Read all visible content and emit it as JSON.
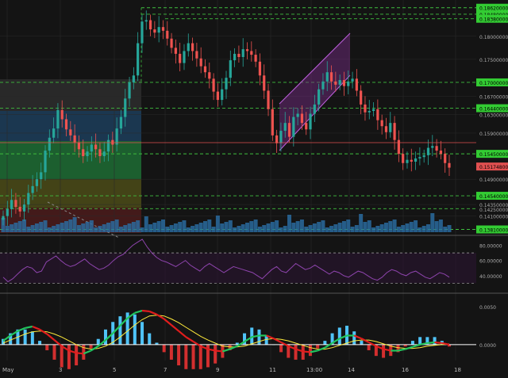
{
  "colors": {
    "background": "#141414",
    "grid": "#2a2a2a",
    "candle_up": "#26a69a",
    "candle_down": "#ef5350",
    "level_line": "#3fbf3f",
    "price_box": "#33cc33",
    "current_price_box": "#e05050",
    "channel": "#b04cc8",
    "rsi": "#8e44ad",
    "macd_zero": "#ffffff",
    "volume": "#2b6fa6"
  },
  "chart_data": [
    {
      "type": "candlestick",
      "name": "price",
      "x_ticks": [
        "May",
        "3",
        "5",
        "7",
        "9",
        "11",
        "13:00",
        "14",
        "16",
        "18"
      ],
      "ylim": [
        0.1375,
        0.1865
      ],
      "price_levels": [
        0.1862,
        0.1848,
        0.1838,
        0.17,
        0.1644,
        0.1545,
        0.1454,
        0.1426,
        0.1381
      ],
      "price_axis_labels": [
        0.18,
        0.175,
        0.167,
        0.163,
        0.159,
        0.149,
        0.1435,
        0.141
      ],
      "current_price": 0.151748,
      "price_labels": [
        "0.18620000",
        "0.18480000",
        "0.18380000",
        "0.18000000",
        "0.17500000",
        "0.17000000",
        "0.16700000",
        "0.16440000",
        "0.16300000",
        "0.15900000",
        "0.15450000",
        "0.15174800",
        "0.14900000",
        "0.14540000",
        "0.14350000",
        "0.14250000",
        "0.14100000",
        "0.13810000"
      ],
      "close_path": [
        0.141,
        0.1425,
        0.1445,
        0.143,
        0.142,
        0.1435,
        0.146,
        0.1475,
        0.149,
        0.1505,
        0.1552,
        0.158,
        0.16,
        0.164,
        0.162,
        0.1598,
        0.1585,
        0.157,
        0.1555,
        0.154,
        0.155,
        0.1565,
        0.1555,
        0.154,
        0.155,
        0.1575,
        0.1565,
        0.16,
        0.1625,
        0.1665,
        0.17,
        0.1715,
        0.1785,
        0.1832,
        0.1835,
        0.1815,
        0.1808,
        0.182,
        0.1812,
        0.1795,
        0.1775,
        0.1762,
        0.1742,
        0.1768,
        0.1785,
        0.1768,
        0.1752,
        0.1735,
        0.1722,
        0.1708,
        0.168,
        0.1662,
        0.1685,
        0.171,
        0.1748,
        0.1762,
        0.1755,
        0.1772,
        0.1768,
        0.176,
        0.1745,
        0.1715,
        0.1682,
        0.1642,
        0.1585,
        0.1568,
        0.1595,
        0.1612,
        0.1582,
        0.1625,
        0.1632,
        0.1612,
        0.1598,
        0.1632,
        0.1652,
        0.1685,
        0.1702,
        0.1722,
        0.1702,
        0.1695,
        0.1705,
        0.1692,
        0.1702,
        0.1708,
        0.1682,
        0.1652,
        0.1635,
        0.1638,
        0.1642,
        0.1618,
        0.1605,
        0.1592,
        0.1612,
        0.1575,
        0.1545,
        0.1525,
        0.1532,
        0.1528,
        0.1535,
        0.1538,
        0.1542,
        0.1558,
        0.1562,
        0.1552,
        0.1545,
        0.1525,
        0.1515
      ]
    },
    {
      "type": "line",
      "name": "rsi",
      "ylim": [
        20,
        90
      ],
      "y_ticks": [
        80,
        60,
        40
      ],
      "levels": [
        70,
        30
      ],
      "values": [
        38,
        32,
        36,
        42,
        48,
        52,
        50,
        44,
        46,
        58,
        62,
        66,
        60,
        55,
        52,
        54,
        58,
        62,
        56,
        52,
        48,
        50,
        54,
        60,
        65,
        68,
        74,
        80,
        84,
        88,
        78,
        70,
        64,
        60,
        58,
        55,
        52,
        56,
        60,
        54,
        50,
        46,
        52,
        56,
        52,
        48,
        44,
        48,
        52,
        50,
        48,
        46,
        44,
        40,
        36,
        42,
        48,
        52,
        46,
        44,
        50,
        56,
        52,
        48,
        50,
        54,
        50,
        46,
        42,
        46,
        44,
        40,
        38,
        42,
        46,
        44,
        40,
        36,
        34,
        38,
        44,
        48,
        46,
        42,
        40,
        44,
        46,
        42,
        38,
        36,
        40,
        44,
        42,
        38
      ]
    },
    {
      "type": "line",
      "name": "macd",
      "ylim": [
        -0.0018,
        0.0066
      ],
      "y_ticks": [
        0.005,
        0
      ],
      "macd": [
        0.0005,
        0.0012,
        0.0018,
        0.0022,
        0.0024,
        0.002,
        0.0014,
        0.0006,
        -0.0002,
        -0.0008,
        -0.0011,
        -0.0012,
        -0.0008,
        -0.0002,
        0.0006,
        0.0015,
        0.0025,
        0.0035,
        0.0042,
        0.0045,
        0.0044,
        0.004,
        0.0034,
        0.0026,
        0.0018,
        0.001,
        0.0004,
        -0.0002,
        -0.0006,
        -0.0008,
        -0.0009,
        -0.0006,
        -0.0002,
        0.0004,
        0.001,
        0.0012,
        0.0012,
        0.0008,
        0.0003,
        -0.0002,
        -0.0006,
        -0.0009,
        -0.001,
        -0.0008,
        -0.0004,
        0.0002,
        0.0008,
        0.0012,
        0.0012,
        0.0008,
        0.0003,
        -0.0002,
        -0.0006,
        -0.0008,
        -0.0008,
        -0.0006,
        -0.0003,
        0.0,
        0.0002,
        0.0003,
        0.0002,
        0.0
      ],
      "signal": [
        0.0002,
        0.0006,
        0.001,
        0.0014,
        0.0017,
        0.0018,
        0.0017,
        0.0014,
        0.001,
        0.0005,
        0.0,
        -0.0004,
        -0.0006,
        -0.0005,
        -0.0002,
        0.0003,
        0.001,
        0.0018,
        0.0026,
        0.0033,
        0.0038,
        0.0039,
        0.0038,
        0.0034,
        0.0029,
        0.0023,
        0.0017,
        0.0011,
        0.0006,
        0.0002,
        -0.0002,
        -0.0003,
        -0.0003,
        -0.0002,
        0.0001,
        0.0004,
        0.0007,
        0.0008,
        0.0007,
        0.0005,
        0.0002,
        -0.0001,
        -0.0004,
        -0.0006,
        -0.0006,
        -0.0004,
        -0.0001,
        0.0002,
        0.0005,
        0.0006,
        0.0006,
        0.0004,
        0.0001,
        -0.0002,
        -0.0004,
        -0.0005,
        -0.0005,
        -0.0004,
        -0.0002,
        -0.0001,
        0.0,
        0.0001
      ]
    }
  ]
}
